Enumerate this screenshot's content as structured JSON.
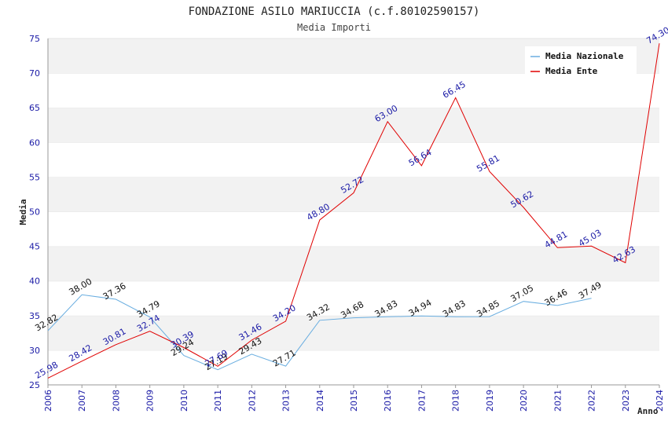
{
  "chart_data": {
    "type": "line",
    "title": "FONDAZIONE ASILO MARIUCCIA (c.f.80102590157)",
    "subtitle": "Media Importi",
    "xlabel": "Anno",
    "ylabel": "Media",
    "ylim": [
      25,
      75
    ],
    "yticks": [
      25,
      30,
      35,
      40,
      45,
      50,
      55,
      60,
      65,
      70,
      75
    ],
    "x": [
      2006,
      2007,
      2008,
      2009,
      2010,
      2011,
      2012,
      2013,
      2014,
      2015,
      2016,
      2017,
      2018,
      2019,
      2020,
      2021,
      2022,
      2023,
      2024
    ],
    "grid": "horizontal bands",
    "legend_position": "top-right",
    "series": [
      {
        "name": "Media Nazionale",
        "color": "#6aaee0",
        "label_color": "#111111",
        "values": [
          32.82,
          38.0,
          37.36,
          34.79,
          29.24,
          27.19,
          29.43,
          27.71,
          34.32,
          34.68,
          34.83,
          34.94,
          34.83,
          34.85,
          37.05,
          36.46,
          37.49,
          null,
          null
        ],
        "labels": [
          "32.82",
          "38.00",
          "37.36",
          "34.79",
          "29.24",
          "27.19",
          "29.43",
          "27.71",
          "34.32",
          "34.68",
          "34.83",
          "34.94",
          "34.83",
          "34.85",
          "37.05",
          "36.46",
          "37.49",
          "",
          ""
        ]
      },
      {
        "name": "Media Ente",
        "color": "#e00000",
        "label_color": "#1a1aa6",
        "values": [
          25.98,
          28.42,
          30.81,
          32.74,
          30.39,
          27.69,
          31.46,
          34.2,
          48.8,
          52.72,
          63.0,
          56.64,
          66.45,
          55.81,
          50.62,
          44.81,
          45.03,
          42.63,
          74.3
        ],
        "labels": [
          "25.98",
          "28.42",
          "30.81",
          "32.74",
          "30.39",
          "27.69",
          "31.46",
          "34.20",
          "48.80",
          "52.72",
          "63.00",
          "56.64",
          "66.45",
          "55.81",
          "50.62",
          "44.81",
          "45.03",
          "42.63",
          "74.30"
        ]
      }
    ]
  }
}
